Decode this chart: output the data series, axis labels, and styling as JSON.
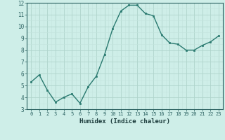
{
  "x": [
    0,
    1,
    2,
    3,
    4,
    5,
    6,
    7,
    8,
    9,
    10,
    11,
    12,
    13,
    14,
    15,
    16,
    17,
    18,
    19,
    20,
    21,
    22,
    23
  ],
  "y": [
    5.3,
    5.9,
    4.6,
    3.6,
    4.0,
    4.3,
    3.5,
    4.9,
    5.8,
    7.6,
    9.8,
    11.3,
    11.8,
    11.8,
    11.1,
    10.9,
    9.3,
    8.6,
    8.5,
    8.0,
    8.0,
    8.4,
    8.7,
    9.2
  ],
  "xlabel": "Humidex (Indice chaleur)",
  "line_color": "#2a7a70",
  "marker_color": "#2a7a70",
  "bg_color": "#ceeee8",
  "grid_major_color": "#b0d4cc",
  "grid_minor_color": "#c4e4de",
  "spine_color": "#2a6060",
  "tick_color": "#2a6060",
  "label_color": "#1a3a3a",
  "ylim": [
    3,
    12
  ],
  "xlim": [
    -0.5,
    23.5
  ],
  "yticks": [
    3,
    4,
    5,
    6,
    7,
    8,
    9,
    10,
    11,
    12
  ],
  "xticks": [
    0,
    1,
    2,
    3,
    4,
    5,
    6,
    7,
    8,
    9,
    10,
    11,
    12,
    13,
    14,
    15,
    16,
    17,
    18,
    19,
    20,
    21,
    22,
    23
  ]
}
